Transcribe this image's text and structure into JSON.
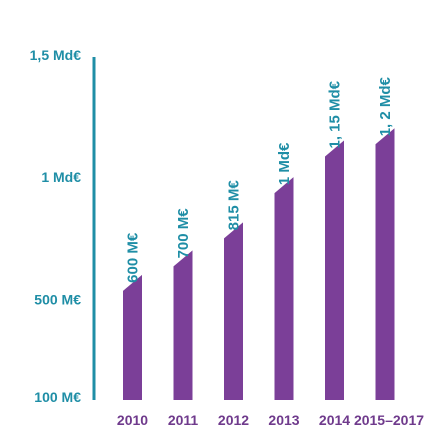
{
  "chart_data": {
    "type": "bar",
    "categories": [
      "2010",
      "2011",
      "2012",
      "2013",
      "2014",
      "2015–2017"
    ],
    "values": [
      600,
      700,
      815,
      1000,
      1150,
      1200
    ],
    "unit": "M€",
    "data_labels": [
      "600 M€",
      "700 M€",
      "815 M€",
      "1 Md€",
      "1, 15 Md€",
      "1, 2 Md€"
    ],
    "yticks": [
      {
        "value": 100,
        "label": "100 M€"
      },
      {
        "value": 500,
        "label": "500 M€"
      },
      {
        "value": 1000,
        "label": "1 Md€"
      },
      {
        "value": 1500,
        "label": "1,5 Md€"
      }
    ],
    "ylim": [
      100,
      1500
    ],
    "grid": false,
    "colors": {
      "bar": "#7b3f98",
      "axis": "#1f8ea6",
      "tick_text": "#1f8ea6",
      "category_text": "#6f3a8c",
      "data_label": "#1f8ea6"
    }
  }
}
